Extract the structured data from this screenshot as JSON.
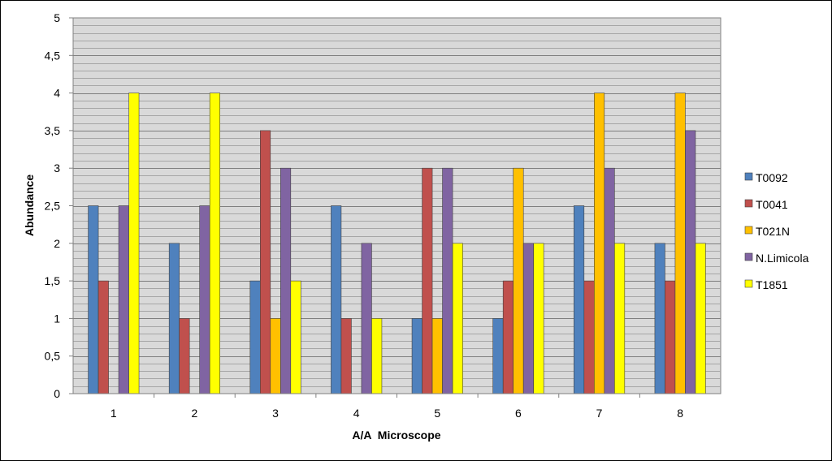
{
  "chart_data": {
    "type": "bar",
    "title": "",
    "xlabel": "A/A  Microscope",
    "ylabel": "Abundance",
    "categories": [
      "1",
      "2",
      "3",
      "4",
      "5",
      "6",
      "7",
      "8"
    ],
    "ylim": [
      0,
      5
    ],
    "yticks": [
      "0",
      "0,5",
      "1",
      "1,5",
      "2",
      "2,5",
      "3",
      "3,5",
      "4",
      "4,5",
      "5"
    ],
    "grid": true,
    "legend_position": "right",
    "series": [
      {
        "name": "T0092",
        "color": "#4F81BD",
        "values": [
          2.5,
          2,
          1.5,
          2.5,
          1,
          1,
          2.5,
          2
        ]
      },
      {
        "name": "T0041",
        "color": "#C0504D",
        "values": [
          1.5,
          1,
          3.5,
          1,
          3,
          1.5,
          1.5,
          1.5
        ]
      },
      {
        "name": "T021N",
        "color": "#FFC000",
        "values": [
          0,
          0,
          1,
          0,
          1,
          3,
          4,
          4
        ]
      },
      {
        "name": "N.Limicola",
        "color": "#8064A2",
        "values": [
          2.5,
          2.5,
          3,
          2,
          3,
          2,
          3,
          3.5
        ]
      },
      {
        "name": "T1851",
        "color": "#FFFF00",
        "values": [
          4,
          4,
          1.5,
          1,
          2,
          2,
          2,
          2
        ]
      }
    ]
  }
}
